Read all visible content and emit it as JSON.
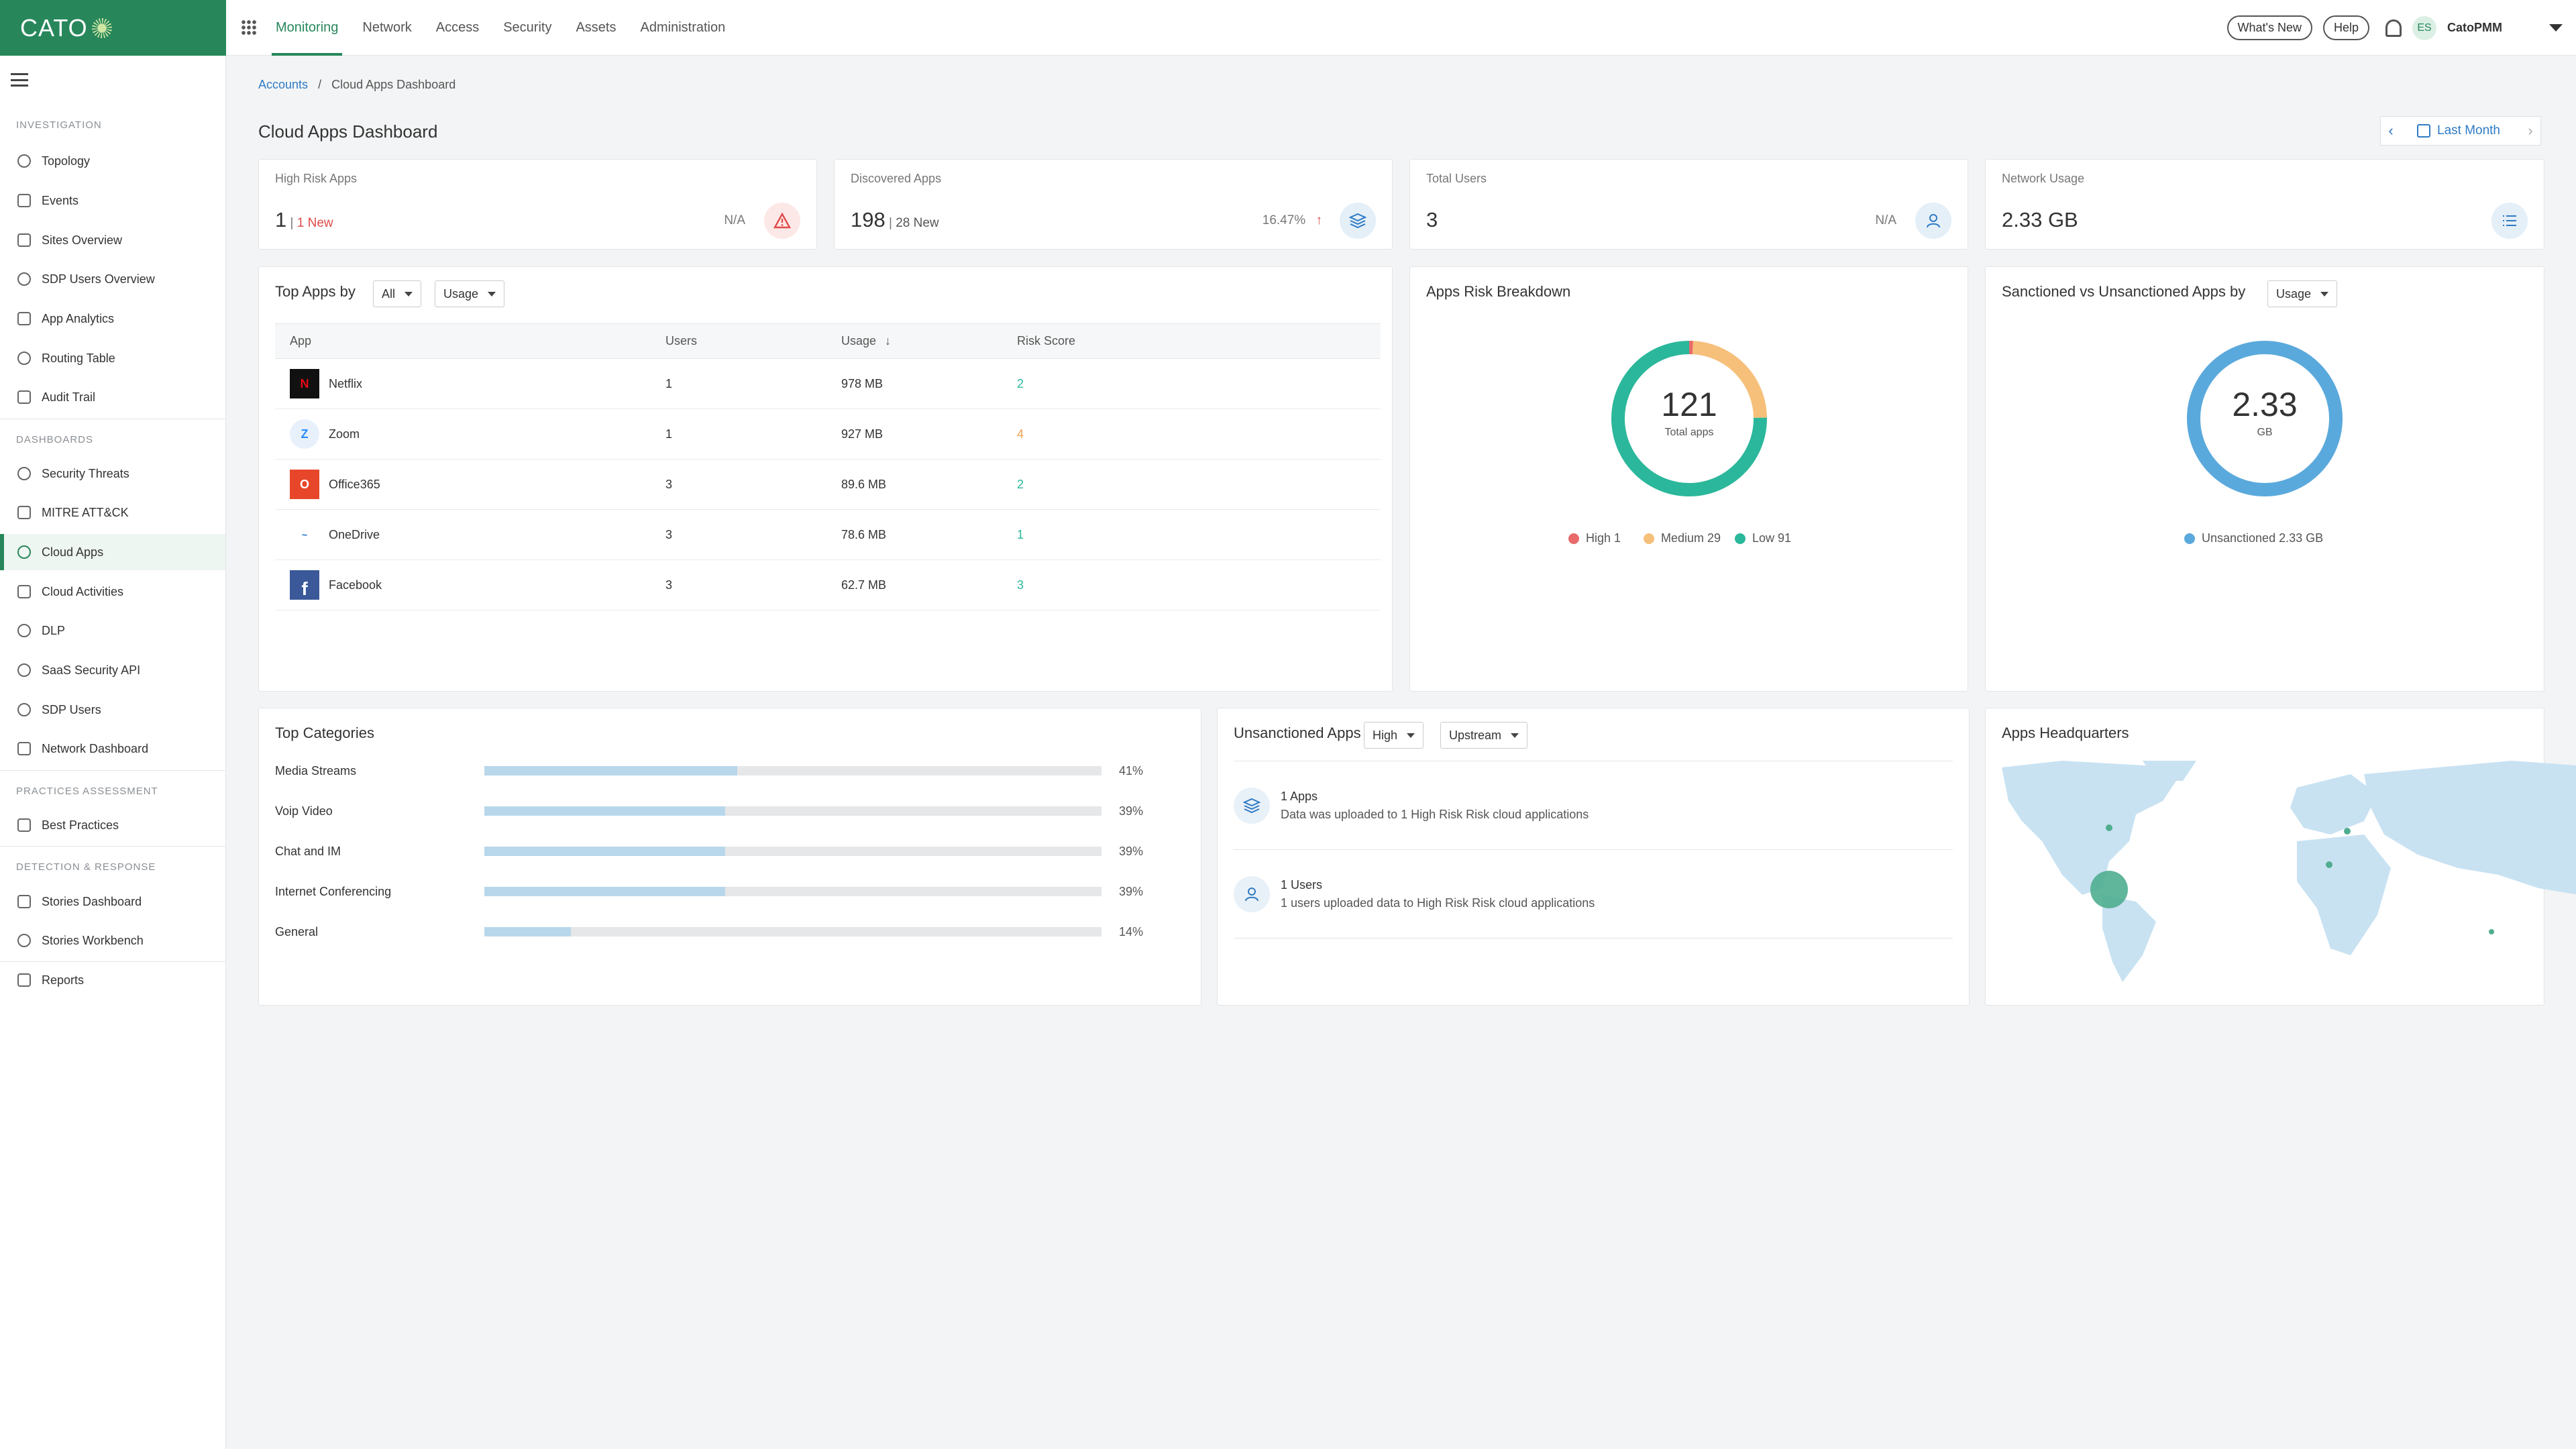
{
  "logo": {
    "text": "CATO"
  },
  "topnav": {
    "tabs": [
      "Monitoring",
      "Network",
      "Access",
      "Security",
      "Assets",
      "Administration"
    ],
    "whats_new": "What's New",
    "help": "Help",
    "avatar": "ES",
    "user": "CatoPMM"
  },
  "sidebar": {
    "sections": {
      "investigation": "INVESTIGATION",
      "dashboards": "DASHBOARDS",
      "practices": "PRACTICES ASSESSMENT",
      "detection": "DETECTION & RESPONSE"
    },
    "investigation_items": [
      "Topology",
      "Events",
      "Sites Overview",
      "SDP Users Overview",
      "App Analytics",
      "Routing Table",
      "Audit Trail"
    ],
    "dashboard_items": [
      "Security Threats",
      "MITRE ATT&CK",
      "Cloud Apps",
      "Cloud Activities",
      "DLP",
      "SaaS Security API",
      "SDP Users",
      "Network Dashboard"
    ],
    "practices_items": [
      "Best Practices"
    ],
    "detection_items": [
      "Stories Dashboard",
      "Stories Workbench",
      "Reports"
    ]
  },
  "breadcrumb": {
    "link": "Accounts",
    "sep": "/",
    "current": "Cloud Apps Dashboard"
  },
  "page_title": "Cloud Apps Dashboard",
  "date_range": "Last Month",
  "kpis": {
    "high_risk": {
      "label": "High Risk Apps",
      "value": "1",
      "sep": " | ",
      "new": "1 New",
      "trend": "N/A"
    },
    "discovered": {
      "label": "Discovered Apps",
      "value": "198",
      "sep": " | ",
      "new": "28 New",
      "trend": "16.47%"
    },
    "users": {
      "label": "Total Users",
      "value": "3",
      "trend": "N/A"
    },
    "usage": {
      "label": "Network Usage",
      "value": "2.33 GB"
    }
  },
  "top_apps": {
    "title": "Top Apps by",
    "filter1": "All",
    "filter2": "Usage",
    "columns": [
      "App",
      "Users",
      "Usage",
      "Risk Score"
    ],
    "rows": [
      {
        "app": "Netflix",
        "users": "1",
        "usage": "978 MB",
        "risk": "2",
        "logo_text": "N"
      },
      {
        "app": "Zoom",
        "users": "1",
        "usage": "927 MB",
        "risk": "4",
        "logo_text": "Z"
      },
      {
        "app": "Office365",
        "users": "3",
        "usage": "89.6 MB",
        "risk": "2",
        "logo_text": "O"
      },
      {
        "app": "OneDrive",
        "users": "3",
        "usage": "78.6 MB",
        "risk": "1",
        "logo_text": "~"
      },
      {
        "app": "Facebook",
        "users": "3",
        "usage": "62.7 MB",
        "risk": "3",
        "logo_text": "f"
      }
    ]
  },
  "risk_breakdown": {
    "title": "Apps Risk Breakdown",
    "center_value": "121",
    "center_label": "Total apps",
    "legend": [
      "High 1",
      "Medium 29",
      "Low 91"
    ]
  },
  "sanctioned": {
    "title": "Sanctioned vs Unsanctioned Apps by",
    "filter": "Usage",
    "center_value": "2.33",
    "center_label": "GB",
    "legend": [
      "Unsanctioned 2.33 GB"
    ]
  },
  "chart_data": [
    {
      "type": "pie",
      "title": "Apps Risk Breakdown",
      "categories": [
        "High",
        "Medium",
        "Low"
      ],
      "values": [
        1,
        29,
        91
      ],
      "colors": [
        "#e86a6a",
        "#f6c07a",
        "#2bb79b"
      ]
    },
    {
      "type": "pie",
      "title": "Sanctioned vs Unsanctioned Apps by Usage",
      "categories": [
        "Unsanctioned"
      ],
      "values": [
        2.33
      ],
      "colors": [
        "#5aa9dc"
      ]
    },
    {
      "type": "bar",
      "title": "Top Categories",
      "categories": [
        "Media Streams",
        "Voip Video",
        "Chat and IM",
        "Internet Conferencing",
        "General"
      ],
      "values": [
        41,
        39,
        39,
        39,
        14
      ]
    }
  ],
  "top_categories": {
    "title": "Top Categories",
    "items": [
      {
        "label": "Media Streams",
        "pct": "41%"
      },
      {
        "label": "Voip Video",
        "pct": "39%"
      },
      {
        "label": "Chat and IM",
        "pct": "39%"
      },
      {
        "label": "Internet Conferencing",
        "pct": "39%"
      },
      {
        "label": "General",
        "pct": "14%"
      }
    ]
  },
  "unsanctioned": {
    "title": "Unsanctioned Apps",
    "filter1": "High",
    "filter2": "Upstream",
    "items": [
      {
        "title": "1 Apps",
        "desc": "Data was uploaded to 1 High Risk Risk cloud applications"
      },
      {
        "title": "1 Users",
        "desc": "1 users uploaded data to High Risk Risk cloud applications"
      }
    ]
  },
  "headquarters": {
    "title": "Apps Headquarters"
  },
  "colors": {
    "brand": "#27875b",
    "link": "#2f7bc4",
    "high": "#e86a6a",
    "medium": "#f6c07a",
    "low": "#2bb79b",
    "usage": "#5aa9dc"
  }
}
